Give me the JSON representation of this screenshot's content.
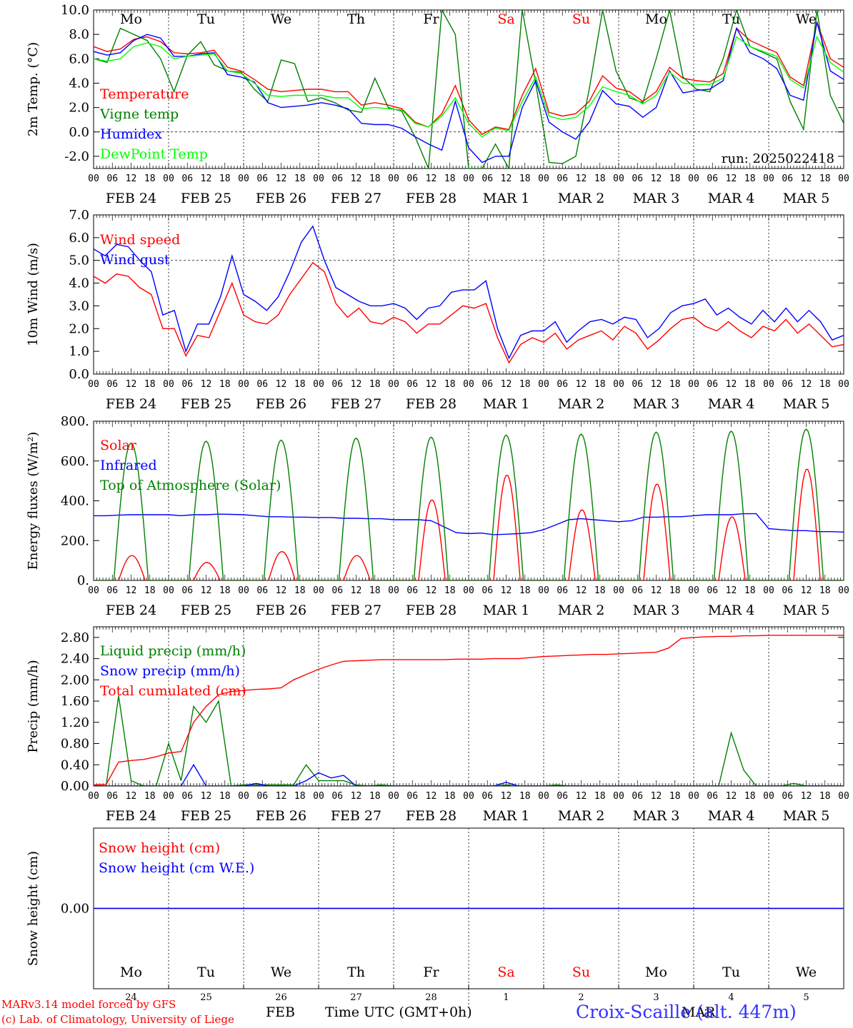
{
  "colors": {
    "red": "#ff0000",
    "green": "#008000",
    "blue": "#0000ff",
    "light_green": "#00ff00",
    "frame": "#000000"
  },
  "days": [
    {
      "abbr": "Mo",
      "weekend": false,
      "date": "FEB 24",
      "day_num": "24"
    },
    {
      "abbr": "Tu",
      "weekend": false,
      "date": "FEB 25",
      "day_num": "25"
    },
    {
      "abbr": "We",
      "weekend": false,
      "date": "FEB 26",
      "day_num": "26"
    },
    {
      "abbr": "Th",
      "weekend": false,
      "date": "FEB 27",
      "day_num": "27"
    },
    {
      "abbr": "Fr",
      "weekend": false,
      "date": "FEB 28",
      "day_num": "28"
    },
    {
      "abbr": "Sa",
      "weekend": true,
      "date": "MAR  1",
      "day_num": "1"
    },
    {
      "abbr": "Su",
      "weekend": true,
      "date": "MAR  2",
      "day_num": "2"
    },
    {
      "abbr": "Mo",
      "weekend": false,
      "date": "MAR  3",
      "day_num": "3"
    },
    {
      "abbr": "Tu",
      "weekend": false,
      "date": "MAR  4",
      "day_num": "4"
    },
    {
      "abbr": "We",
      "weekend": false,
      "date": "MAR  5",
      "day_num": "5"
    }
  ],
  "hour_ticks": [
    "00",
    "06",
    "12",
    "18"
  ],
  "final_hour_tick": "00",
  "footer": {
    "model": "MARv3.14 model forced by GFS",
    "credit": "(c) Lab. of Climatology, University of Liege",
    "month_feb": "FEB",
    "month_mar": "MAR",
    "time_axis": "Time UTC (GMT+0h)",
    "station": "Croix-Scaille (alt. 447m)"
  },
  "chart_data": [
    {
      "type": "line",
      "ylabel": "2m Temp. (°C)",
      "ylim": [
        -3.0,
        10.0
      ],
      "yticks": [
        "-2.0",
        "0.0",
        "2.0",
        "4.0",
        "6.0",
        "8.0",
        "10.0"
      ],
      "ytick_values": [
        -2,
        0,
        2,
        4,
        6,
        8,
        10
      ],
      "ref_line": 0.0,
      "annotation": "run: 2025022418",
      "show_day_abbr": true,
      "x_hours_step": 6,
      "series": [
        {
          "name": "Temperature",
          "color": "red",
          "values": [
            7.0,
            6.6,
            6.8,
            7.6,
            7.8,
            7.4,
            6.5,
            6.4,
            6.5,
            6.7,
            5.3,
            5.0,
            4.3,
            3.5,
            3.3,
            3.4,
            3.5,
            3.5,
            3.3,
            3.3,
            2.2,
            2.4,
            2.2,
            1.9,
            0.8,
            0.4,
            1.5,
            3.8,
            1.0,
            -0.2,
            0.4,
            0.2,
            3.0,
            5.2,
            1.6,
            1.3,
            1.5,
            2.5,
            4.6,
            3.6,
            3.3,
            2.5,
            3.3,
            5.3,
            4.4,
            4.2,
            4.1,
            4.8,
            8.5,
            7.5,
            7.0,
            6.5,
            4.5,
            3.8,
            9.0,
            6.0,
            5.3
          ]
        },
        {
          "name": "Vigne temp",
          "color": "green",
          "values": [
            6.0,
            5.7,
            8.5,
            8.0,
            7.5,
            6.0,
            3.3,
            6.3,
            7.4,
            5.5,
            5.0,
            4.9,
            3.5,
            2.5,
            5.9,
            5.6,
            2.5,
            2.8,
            2.4,
            1.8,
            1.6,
            4.4,
            2.0,
            1.7,
            -0.4,
            -3.0,
            10.0,
            8.0,
            -3.0,
            -3.0,
            -1.0,
            -3.0,
            10.0,
            4.0,
            -2.5,
            -2.6,
            -2.0,
            3.5,
            10.0,
            5.0,
            2.8,
            2.4,
            6.0,
            10.0,
            4.5,
            3.5,
            3.3,
            6.0,
            10.0,
            7.0,
            6.5,
            6.0,
            2.5,
            0.2,
            10.0,
            3.0,
            0.7
          ]
        },
        {
          "name": "Humidex",
          "color": "blue",
          "values": [
            6.6,
            6.3,
            6.5,
            7.5,
            8.0,
            7.7,
            6.2,
            6.2,
            6.4,
            6.5,
            4.7,
            4.5,
            4.1,
            2.4,
            2.0,
            2.1,
            2.2,
            2.4,
            2.2,
            1.9,
            0.7,
            0.6,
            0.6,
            0.3,
            -0.4,
            -1.0,
            -1.5,
            2.5,
            -1.3,
            -2.5,
            -2.0,
            -2.0,
            2.0,
            4.2,
            0.8,
            0.0,
            -0.6,
            0.8,
            3.4,
            2.3,
            2.1,
            1.2,
            2.0,
            5.0,
            3.2,
            3.4,
            3.5,
            4.2,
            8.5,
            6.5,
            6.0,
            5.2,
            3.0,
            2.6,
            9.0,
            5.0,
            4.3
          ]
        },
        {
          "name": "DewPoint Temp",
          "color": "light_green",
          "values": [
            6.0,
            5.8,
            6.0,
            7.0,
            7.3,
            7.0,
            6.0,
            6.2,
            6.3,
            6.4,
            5.0,
            4.8,
            4.0,
            3.0,
            2.9,
            3.0,
            3.0,
            3.0,
            2.8,
            2.8,
            1.9,
            2.0,
            1.9,
            1.8,
            0.7,
            0.4,
            1.3,
            2.8,
            0.7,
            -0.4,
            0.3,
            0.1,
            2.5,
            4.5,
            1.3,
            1.0,
            1.2,
            2.1,
            3.7,
            3.3,
            3.0,
            2.3,
            3.0,
            4.9,
            4.0,
            3.9,
            3.9,
            4.4,
            7.8,
            7.0,
            6.6,
            6.2,
            4.3,
            3.6,
            7.8,
            5.7,
            4.9
          ]
        }
      ]
    },
    {
      "type": "line",
      "ylabel": "10m Wind (m/s)",
      "ylim": [
        0.0,
        7.0
      ],
      "yticks": [
        "0.0",
        "1.0",
        "2.0",
        "3.0",
        "4.0",
        "5.0",
        "6.0",
        "7.0"
      ],
      "ytick_values": [
        0,
        1,
        2,
        3,
        4,
        5,
        6,
        7
      ],
      "ref_line": 5.0,
      "show_day_abbr": false,
      "x_hours_step": 6,
      "series": [
        {
          "name": "Wind speed",
          "color": "red",
          "values": [
            4.3,
            4.0,
            4.4,
            4.3,
            3.8,
            3.5,
            2.0,
            2.0,
            0.8,
            1.7,
            1.6,
            2.8,
            4.0,
            2.6,
            2.3,
            2.2,
            2.6,
            3.5,
            4.2,
            4.9,
            4.5,
            3.1,
            2.5,
            2.9,
            2.3,
            2.2,
            2.5,
            2.3,
            1.8,
            2.2,
            2.2,
            2.6,
            3.0,
            2.9,
            3.1,
            1.6,
            0.5,
            1.3,
            1.6,
            1.4,
            1.8,
            1.1,
            1.5,
            1.7,
            1.9,
            1.5,
            2.1,
            1.8,
            1.1,
            1.5,
            2.0,
            2.4,
            2.5,
            2.1,
            1.9,
            2.3,
            1.9,
            1.6,
            2.1,
            1.9,
            2.4,
            1.8,
            2.2,
            1.7,
            1.2,
            1.3
          ]
        },
        {
          "name": "Wind gust",
          "color": "blue",
          "values": [
            5.5,
            5.2,
            5.7,
            5.6,
            5.0,
            4.5,
            2.6,
            2.8,
            1.0,
            2.2,
            2.2,
            3.4,
            5.2,
            3.5,
            3.2,
            2.8,
            3.4,
            4.5,
            5.8,
            6.5,
            5.0,
            3.8,
            3.5,
            3.2,
            3.0,
            3.0,
            3.1,
            2.9,
            2.4,
            2.9,
            3.0,
            3.6,
            3.7,
            3.7,
            4.1,
            2.0,
            0.7,
            1.7,
            1.9,
            1.9,
            2.3,
            1.4,
            1.9,
            2.3,
            2.4,
            2.2,
            2.5,
            2.4,
            1.6,
            2.0,
            2.7,
            3.0,
            3.1,
            3.3,
            2.6,
            2.9,
            2.5,
            2.2,
            2.8,
            2.3,
            2.9,
            2.3,
            2.8,
            2.3,
            1.5,
            1.7
          ]
        }
      ]
    },
    {
      "type": "line",
      "ylabel": "Energy fluxes (W/m²)",
      "ylim": [
        0,
        800
      ],
      "yticks": [
        "0.",
        "200.",
        "400.",
        "600.",
        "800."
      ],
      "ytick_values": [
        0,
        200,
        400,
        600,
        800
      ],
      "show_day_abbr": false,
      "x_hours_step": 6,
      "series": [
        {
          "name": "Solar",
          "color": "red",
          "solar_peaks": [
            125,
            90,
            145,
            125,
            405,
            530,
            355,
            485,
            320,
            560
          ]
        },
        {
          "name": "Infrared",
          "color": "blue",
          "values": [
            325,
            325,
            328,
            330,
            330,
            330,
            330,
            325,
            330,
            330,
            333,
            332,
            330,
            325,
            320,
            320,
            318,
            318,
            316,
            316,
            312,
            312,
            310,
            310,
            305,
            305,
            305,
            300,
            270,
            240,
            235,
            238,
            230,
            232,
            235,
            240,
            255,
            280,
            305,
            310,
            305,
            300,
            295,
            300,
            318,
            318,
            320,
            320,
            325,
            330,
            330,
            330,
            335,
            335,
            260,
            255,
            250,
            250,
            245,
            245,
            243
          ]
        },
        {
          "name": "Top of Atmosphere (Solar)",
          "color": "green",
          "toa_peaks": [
            690,
            700,
            705,
            715,
            720,
            730,
            735,
            745,
            750,
            760
          ]
        }
      ]
    },
    {
      "type": "line",
      "ylabel": "Precip (mm/h)",
      "ylim": [
        0.0,
        3.0
      ],
      "yticks": [
        "0.00",
        "0.40",
        "0.80",
        "1.20",
        "1.60",
        "2.00",
        "2.40",
        "2.80"
      ],
      "ytick_values": [
        0,
        0.4,
        0.8,
        1.2,
        1.6,
        2.0,
        2.4,
        2.8
      ],
      "show_day_abbr": false,
      "x_hours_step": 6,
      "series": [
        {
          "name": "Liquid precip (mm/h)",
          "color": "green",
          "values": [
            0.0,
            0.0,
            1.7,
            0.1,
            0.0,
            0.0,
            0.8,
            0.1,
            1.5,
            1.2,
            1.6,
            0.0,
            0.02,
            0.02,
            0.02,
            0.02,
            0.02,
            0.4,
            0.1,
            0.1,
            0.1,
            0.02,
            0.0,
            0.02,
            0.0,
            0.0,
            0.0,
            0.0,
            0.0,
            0.0,
            0.0,
            0.0,
            0.0,
            0.02,
            0.0,
            0.0,
            0.0,
            0.02,
            0.0,
            0.0,
            0.0,
            0.0,
            0.0,
            0.0,
            0.0,
            0.0,
            0.0,
            0.0,
            0.0,
            0.0,
            0.0,
            1.0,
            0.3,
            0.0,
            0.0,
            0.0,
            0.05,
            0.0,
            0.0,
            0.0,
            0.0
          ]
        },
        {
          "name": "Snow precip (mm/h)",
          "color": "blue",
          "values": [
            0.0,
            0.0,
            0.0,
            0.0,
            0.0,
            0.0,
            0.0,
            0.0,
            0.4,
            0.0,
            0.0,
            0.0,
            0.0,
            0.05,
            0.0,
            0.0,
            0.0,
            0.1,
            0.25,
            0.15,
            0.2,
            0.0,
            0.0,
            0.0,
            0.0,
            0.0,
            0.0,
            0.0,
            0.0,
            0.0,
            0.0,
            0.0,
            0.0,
            0.07,
            0.0,
            0.0,
            0.0,
            0.0,
            0.0,
            0.0,
            0.0,
            0.0,
            0.0,
            0.0,
            0.0,
            0.0,
            0.0,
            0.0,
            0.0,
            0.0,
            0.0,
            0.0,
            0.0,
            0.0,
            0.0,
            0.0,
            0.0,
            0.0,
            0.0,
            0.0,
            0.0
          ]
        },
        {
          "name": "Total cumulated (cm)",
          "color": "red",
          "values": [
            0.02,
            0.03,
            0.45,
            0.48,
            0.5,
            0.55,
            0.62,
            0.65,
            1.2,
            1.5,
            1.72,
            1.78,
            1.8,
            1.82,
            1.83,
            1.85,
            2.0,
            2.1,
            2.2,
            2.28,
            2.35,
            2.36,
            2.37,
            2.38,
            2.38,
            2.38,
            2.38,
            2.38,
            2.38,
            2.39,
            2.39,
            2.39,
            2.4,
            2.4,
            2.4,
            2.42,
            2.44,
            2.45,
            2.46,
            2.47,
            2.48,
            2.48,
            2.49,
            2.5,
            2.51,
            2.52,
            2.6,
            2.78,
            2.8,
            2.81,
            2.82,
            2.82,
            2.83,
            2.83,
            2.84,
            2.84,
            2.84,
            2.84,
            2.84,
            2.84,
            2.84
          ]
        }
      ]
    },
    {
      "type": "line",
      "ylabel": "Snow height (cm)",
      "ylim": [
        -1.0,
        1.0
      ],
      "yticks": [
        "0.00"
      ],
      "ytick_values": [
        0
      ],
      "show_day_abbr_bottom": true,
      "x_hours_step": 6,
      "series": [
        {
          "name": "Snow height (cm)",
          "color": "red",
          "values": [
            0,
            0
          ]
        },
        {
          "name": "Snow height (cm W.E.)",
          "color": "blue",
          "values": [
            0,
            0
          ]
        }
      ]
    }
  ]
}
